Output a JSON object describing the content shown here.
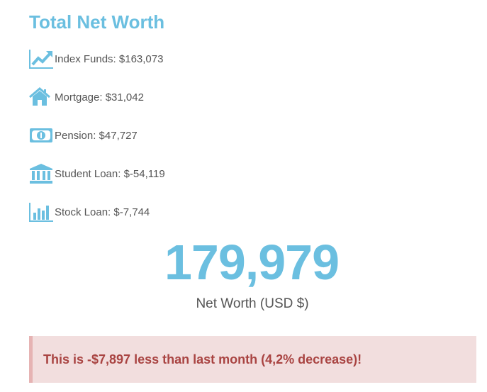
{
  "header": {
    "title": "Total Net Worth"
  },
  "items": [
    {
      "label": "Index Funds: $163,073"
    },
    {
      "label": "Mortgage: $31,042"
    },
    {
      "label": "Pension: $47,727"
    },
    {
      "label": "Student Loan: $-54,119"
    },
    {
      "label": "Stock Loan: $-7,744"
    }
  ],
  "summary": {
    "value": "179,979",
    "caption": "Net Worth (USD $)"
  },
  "alert": {
    "text": "This is -$7,897 less than last month (4,2% decrease)!"
  }
}
